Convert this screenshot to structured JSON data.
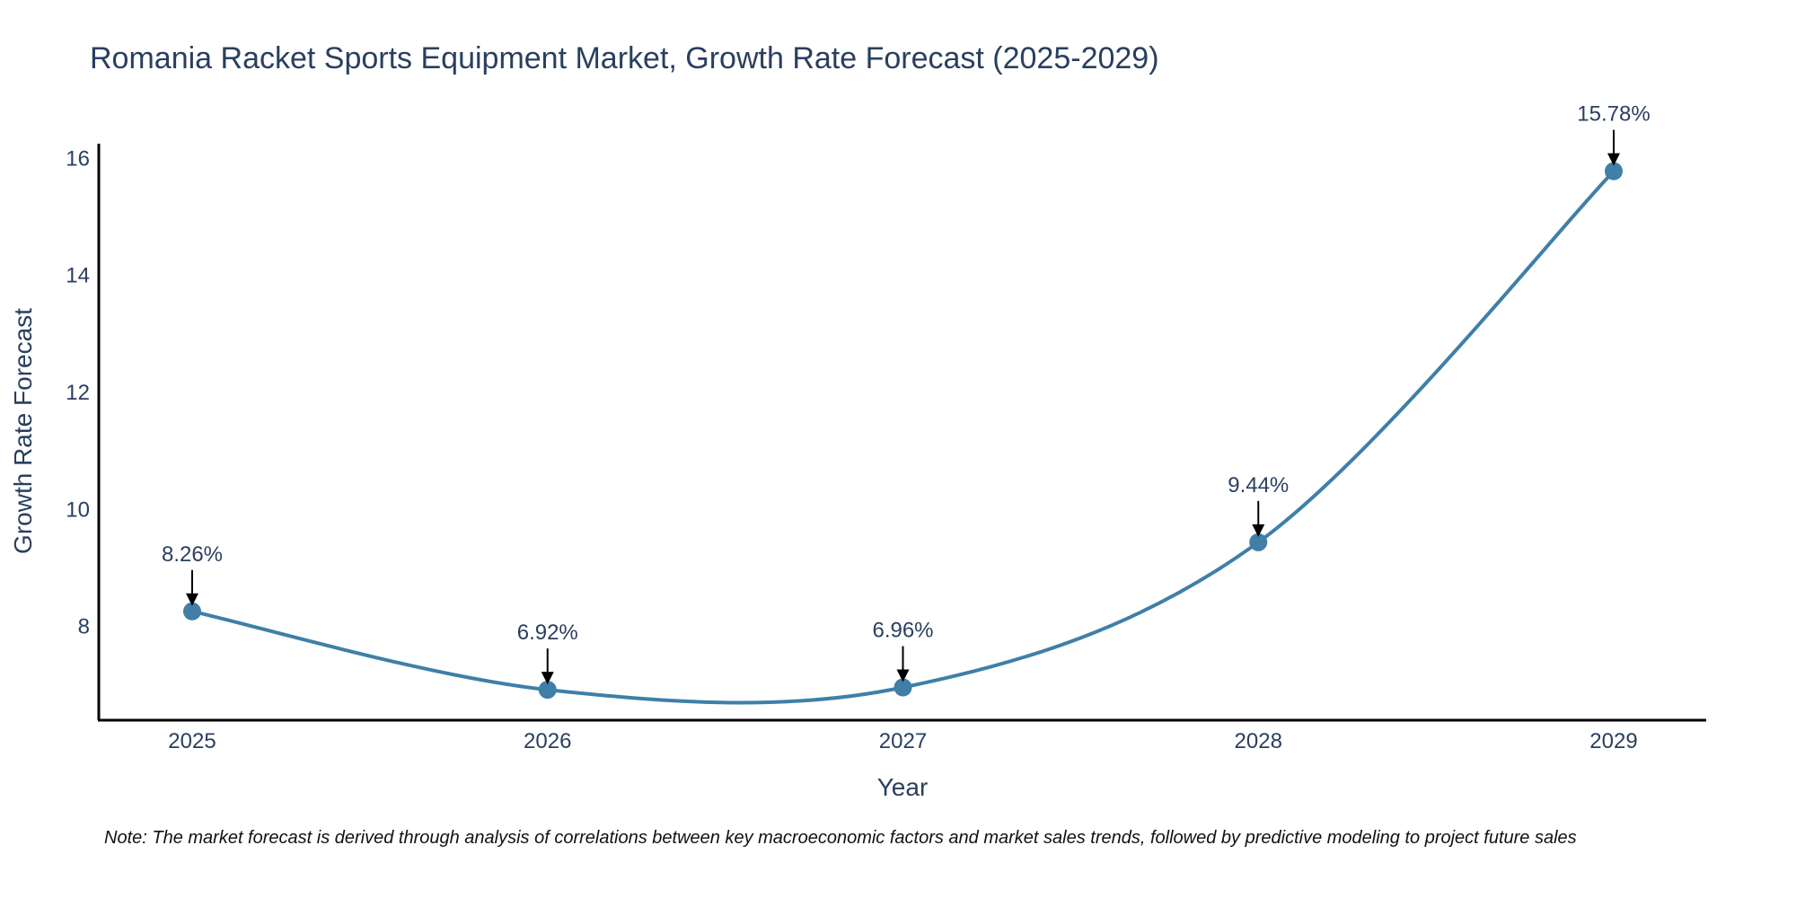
{
  "chart_data": {
    "type": "line",
    "title": "Romania Racket Sports Equipment Market, Growth Rate Forecast (2025-2029)",
    "xlabel": "Year",
    "ylabel": "Growth Rate Forecast",
    "categories": [
      "2025",
      "2026",
      "2027",
      "2028",
      "2029"
    ],
    "series": [
      {
        "name": "Growth Rate Forecast",
        "values": [
          8.26,
          6.92,
          6.96,
          9.44,
          15.78
        ],
        "labels": [
          "8.26%",
          "6.92%",
          "6.96%",
          "9.44%",
          "15.78%"
        ]
      }
    ],
    "yticks": [
      "8",
      "10",
      "12",
      "14",
      "16"
    ],
    "ylim": [
      6.4,
      16.25
    ],
    "grid": false,
    "line_shape": "spline",
    "colors": {
      "line": "#3f7fa8",
      "marker": "#3f7fa8",
      "text": "#2a3f5f",
      "axis": "#000000"
    },
    "note": "Note: The market forecast is derived through analysis of correlations between key macroeconomic factors and market sales trends, followed by predictive modeling to project future sales"
  }
}
